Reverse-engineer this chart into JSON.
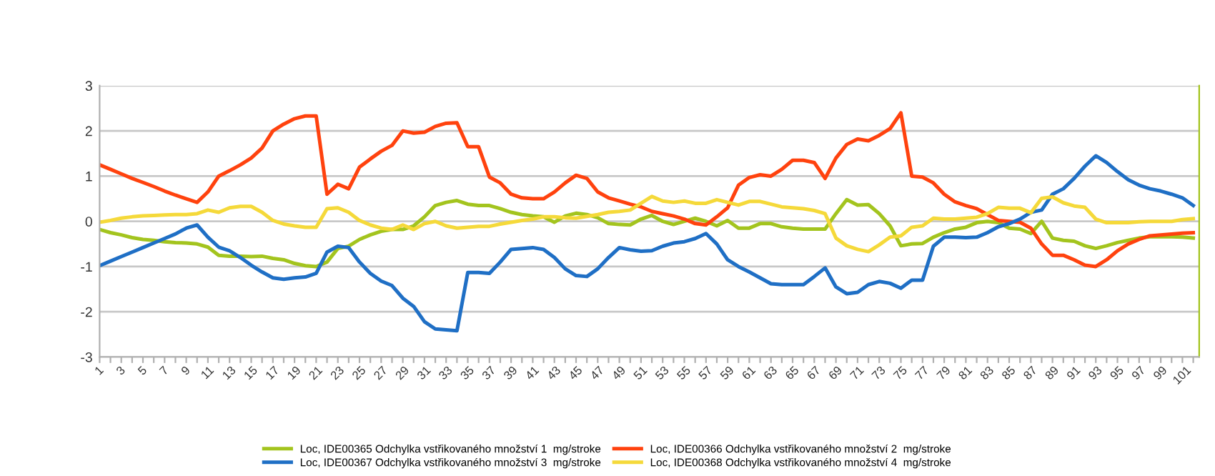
{
  "chart_data": {
    "type": "line",
    "categories": [
      "1",
      null,
      "3",
      null,
      "5",
      null,
      "7",
      null,
      "9",
      null,
      "11",
      null,
      "13",
      null,
      "15",
      null,
      "17",
      null,
      "19",
      null,
      "21",
      null,
      "23",
      null,
      "25",
      null,
      "27",
      null,
      "29",
      null,
      "31",
      null,
      "33",
      null,
      "35",
      null,
      "37",
      null,
      "39",
      null,
      "41",
      null,
      "43",
      null,
      "45",
      null,
      "47",
      null,
      "49",
      null,
      "51",
      null,
      "53",
      null,
      "55",
      null,
      "57",
      null,
      "59",
      null,
      "61",
      null,
      "63",
      null,
      "65",
      null,
      "67",
      null,
      "69",
      null,
      "71",
      null,
      "73",
      null,
      "75",
      null,
      "77",
      null,
      "79",
      null,
      "81",
      null,
      "83",
      null,
      "85",
      null,
      "87",
      null,
      "89",
      null,
      "91",
      null,
      "93",
      null,
      "95",
      null,
      "97",
      null,
      "99",
      null,
      "101",
      null
    ],
    "series": [
      {
        "name": "Loc, IDE00365 Odchylka vstřikovaného množství 1  mg/stroke",
        "color": "#a3c41e",
        "values": [
          -0.18,
          -0.25,
          -0.3,
          -0.36,
          -0.4,
          -0.42,
          -0.45,
          -0.47,
          -0.48,
          -0.5,
          -0.57,
          -0.75,
          -0.77,
          -0.77,
          -0.78,
          -0.77,
          -0.82,
          -0.85,
          -0.93,
          -0.98,
          -1.0,
          -0.9,
          -0.6,
          -0.55,
          -0.4,
          -0.3,
          -0.22,
          -0.18,
          -0.18,
          -0.1,
          0.1,
          0.35,
          0.42,
          0.46,
          0.38,
          0.35,
          0.35,
          0.28,
          0.2,
          0.15,
          0.12,
          0.1,
          -0.02,
          0.12,
          0.18,
          0.15,
          0.08,
          -0.05,
          -0.07,
          -0.08,
          0.05,
          0.13,
          0.0,
          -0.07,
          0.0,
          0.07,
          0.0,
          -0.1,
          0.02,
          -0.15,
          -0.15,
          -0.05,
          -0.05,
          -0.12,
          -0.15,
          -0.17,
          -0.17,
          -0.17,
          0.17,
          0.48,
          0.36,
          0.37,
          0.17,
          -0.1,
          -0.54,
          -0.5,
          -0.49,
          -0.35,
          -0.25,
          -0.17,
          -0.13,
          -0.03,
          0.0,
          -0.03,
          -0.15,
          -0.17,
          -0.27,
          0.0,
          -0.37,
          -0.42,
          -0.44,
          -0.54,
          -0.6,
          -0.54,
          -0.47,
          -0.42,
          -0.37,
          -0.34,
          -0.34,
          -0.34,
          -0.35,
          -0.37
        ]
      },
      {
        "name": "Loc, IDE00366 Odchylka vstřikovaného množství 2  mg/stroke",
        "color": "#ff420e",
        "values": [
          1.25,
          1.15,
          1.05,
          0.95,
          0.86,
          0.77,
          0.67,
          0.58,
          0.5,
          0.42,
          0.65,
          1.0,
          1.12,
          1.25,
          1.4,
          1.62,
          2.0,
          2.15,
          2.27,
          2.33,
          2.33,
          0.6,
          0.82,
          0.72,
          1.2,
          1.38,
          1.55,
          1.68,
          2.0,
          1.95,
          1.97,
          2.1,
          2.17,
          2.18,
          1.65,
          1.65,
          0.98,
          0.85,
          0.6,
          0.52,
          0.5,
          0.5,
          0.65,
          0.85,
          1.02,
          0.95,
          0.65,
          0.52,
          0.45,
          0.38,
          0.32,
          0.22,
          0.17,
          0.12,
          0.05,
          -0.05,
          -0.08,
          0.1,
          0.3,
          0.8,
          0.97,
          1.03,
          1.0,
          1.15,
          1.35,
          1.35,
          1.3,
          0.95,
          1.4,
          1.7,
          1.82,
          1.78,
          1.9,
          2.05,
          2.4,
          1.0,
          0.98,
          0.85,
          0.6,
          0.43,
          0.35,
          0.28,
          0.15,
          0.02,
          0.0,
          -0.02,
          -0.15,
          -0.5,
          -0.75,
          -0.75,
          -0.85,
          -0.97,
          -1.0,
          -0.85,
          -0.65,
          -0.5,
          -0.4,
          -0.32,
          -0.3,
          -0.28,
          -0.26,
          -0.25
        ]
      },
      {
        "name": "Loc, IDE00367 Odchylka vstřikovaného množství 3  mg/stroke",
        "color": "#1f6fc5",
        "values": [
          -0.98,
          -0.88,
          -0.78,
          -0.68,
          -0.58,
          -0.48,
          -0.38,
          -0.28,
          -0.15,
          -0.08,
          -0.35,
          -0.57,
          -0.65,
          -0.8,
          -0.97,
          -1.12,
          -1.25,
          -1.28,
          -1.25,
          -1.23,
          -1.15,
          -0.68,
          -0.55,
          -0.58,
          -0.9,
          -1.15,
          -1.32,
          -1.42,
          -1.7,
          -1.88,
          -2.22,
          -2.38,
          -2.4,
          -2.42,
          -1.13,
          -1.13,
          -1.15,
          -0.9,
          -0.62,
          -0.6,
          -0.58,
          -0.62,
          -0.8,
          -1.05,
          -1.2,
          -1.22,
          -1.05,
          -0.8,
          -0.58,
          -0.63,
          -0.66,
          -0.65,
          -0.55,
          -0.48,
          -0.45,
          -0.38,
          -0.27,
          -0.5,
          -0.85,
          -1.0,
          -1.12,
          -1.25,
          -1.38,
          -1.4,
          -1.4,
          -1.4,
          -1.22,
          -1.03,
          -1.45,
          -1.6,
          -1.57,
          -1.4,
          -1.33,
          -1.37,
          -1.48,
          -1.3,
          -1.3,
          -0.55,
          -0.35,
          -0.35,
          -0.36,
          -0.35,
          -0.25,
          -0.12,
          -0.05,
          0.05,
          0.2,
          0.25,
          0.6,
          0.72,
          0.95,
          1.22,
          1.45,
          1.3,
          1.1,
          0.92,
          0.8,
          0.72,
          0.67,
          0.6,
          0.52,
          0.35
        ]
      },
      {
        "name": "Loc, IDE00368 Odchylka vstřikovaného množství 4  mg/stroke",
        "color": "#f5d93a",
        "values": [
          -0.02,
          0.02,
          0.07,
          0.1,
          0.12,
          0.13,
          0.14,
          0.15,
          0.15,
          0.17,
          0.25,
          0.2,
          0.3,
          0.33,
          0.33,
          0.2,
          0.02,
          -0.06,
          -0.1,
          -0.13,
          -0.13,
          0.28,
          0.3,
          0.2,
          0.02,
          -0.08,
          -0.15,
          -0.18,
          -0.08,
          -0.18,
          -0.05,
          0.0,
          -0.1,
          -0.15,
          -0.13,
          -0.11,
          -0.11,
          -0.06,
          -0.02,
          0.02,
          0.05,
          0.1,
          0.1,
          0.08,
          0.07,
          0.11,
          0.15,
          0.2,
          0.22,
          0.25,
          0.4,
          0.55,
          0.45,
          0.42,
          0.45,
          0.4,
          0.4,
          0.48,
          0.42,
          0.36,
          0.44,
          0.44,
          0.38,
          0.32,
          0.3,
          0.28,
          0.24,
          0.17,
          -0.37,
          -0.54,
          -0.62,
          -0.67,
          -0.52,
          -0.35,
          -0.32,
          -0.13,
          -0.1,
          0.07,
          0.05,
          0.05,
          0.07,
          0.09,
          0.17,
          0.31,
          0.29,
          0.29,
          0.19,
          0.51,
          0.54,
          0.41,
          0.34,
          0.31,
          0.05,
          -0.03,
          -0.03,
          -0.03,
          -0.01,
          0.0,
          0.0,
          0.0,
          0.04,
          0.06
        ]
      }
    ],
    "ylim": [
      -3,
      3
    ],
    "yticks": [
      -3,
      -2,
      -1,
      0,
      1,
      2,
      3
    ],
    "grid": "y",
    "legend": "bottom",
    "marker": "none",
    "line_style": "solid"
  }
}
